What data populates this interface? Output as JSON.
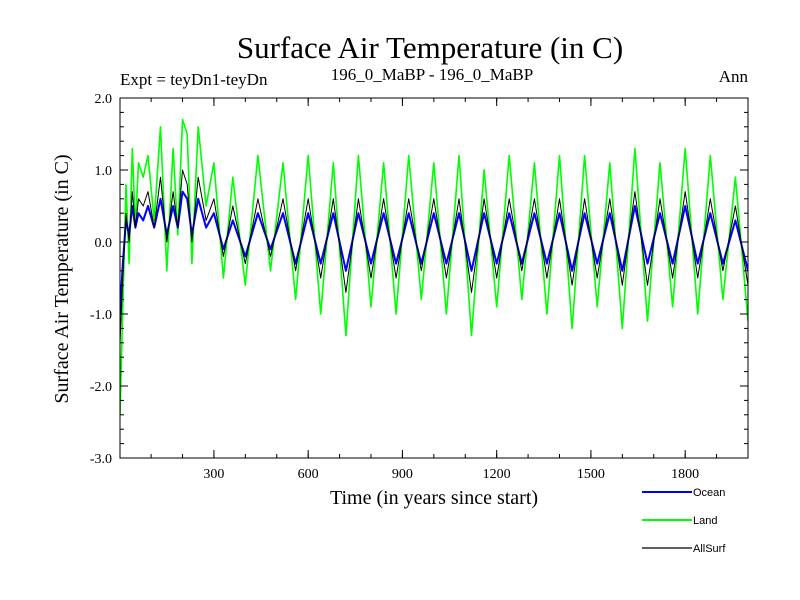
{
  "header": {
    "title": "Surface Air Temperature (in C)",
    "expt": "Expt = teyDn1-teyDn",
    "subtitle": "196_0_MaBP - 196_0_MaBP",
    "season": "Ann"
  },
  "chart_data": {
    "type": "line",
    "title": "Surface Air Temperature (in C)",
    "xlabel": "Time (in years since start)",
    "ylabel": "Surface Air Temperature (in C)",
    "xlim": [
      1,
      2000
    ],
    "ylim": [
      -3.0,
      2.0
    ],
    "xticks": [
      300,
      600,
      900,
      1200,
      1500,
      1800
    ],
    "xtick_labels": [
      "300",
      "600",
      "900",
      "1200",
      "1500",
      "1800"
    ],
    "yticks": [
      2.0,
      1.0,
      0.0,
      -1.0,
      -2.0,
      -3.0
    ],
    "ytick_labels": [
      "2.0",
      "1.0",
      "0.0",
      "-1.0",
      "-2.0",
      "-3.0"
    ],
    "legend_position": "bottom-right, outside plot",
    "series": [
      {
        "name": "Land",
        "color": "#00ff00",
        "x": [
          1,
          10,
          20,
          30,
          40,
          50,
          60,
          75,
          90,
          110,
          130,
          150,
          170,
          185,
          200,
          215,
          230,
          250,
          275,
          300,
          330,
          360,
          400,
          440,
          480,
          520,
          560,
          600,
          640,
          680,
          720,
          760,
          800,
          840,
          880,
          920,
          960,
          1000,
          1040,
          1080,
          1120,
          1160,
          1200,
          1240,
          1280,
          1320,
          1360,
          1400,
          1440,
          1480,
          1520,
          1560,
          1600,
          1640,
          1680,
          1720,
          1760,
          1800,
          1840,
          1880,
          1920,
          1960,
          2000
        ],
        "values": [
          -2.4,
          -0.9,
          0.8,
          -0.3,
          1.3,
          0.2,
          1.1,
          0.9,
          1.2,
          0.3,
          1.6,
          -0.4,
          1.3,
          0.1,
          1.7,
          1.5,
          -0.3,
          1.6,
          0.5,
          1.1,
          -0.5,
          0.9,
          -0.6,
          1.2,
          -0.4,
          1.1,
          -0.8,
          1.2,
          -1.0,
          1.1,
          -1.3,
          1.2,
          -0.9,
          1.1,
          -1.0,
          1.2,
          -0.8,
          1.1,
          -1.0,
          1.2,
          -1.3,
          1.0,
          -0.9,
          1.2,
          -0.8,
          1.1,
          -1.0,
          1.2,
          -1.2,
          1.2,
          -0.9,
          1.1,
          -1.2,
          1.3,
          -1.1,
          1.1,
          -0.9,
          1.3,
          -1.0,
          1.2,
          -0.8,
          0.9,
          -1.1
        ]
      },
      {
        "name": "Ocean",
        "color": "#0000ff",
        "x": [
          1,
          10,
          20,
          30,
          40,
          50,
          60,
          75,
          90,
          110,
          130,
          150,
          170,
          185,
          200,
          215,
          230,
          250,
          275,
          300,
          330,
          360,
          400,
          440,
          480,
          520,
          560,
          600,
          640,
          680,
          720,
          760,
          800,
          840,
          880,
          920,
          960,
          1000,
          1040,
          1080,
          1120,
          1160,
          1200,
          1240,
          1280,
          1320,
          1360,
          1400,
          1440,
          1480,
          1520,
          1560,
          1600,
          1640,
          1680,
          1720,
          1760,
          1800,
          1840,
          1880,
          1920,
          1960,
          2000
        ],
        "values": [
          -1.0,
          -0.3,
          0.3,
          0.1,
          0.5,
          0.2,
          0.4,
          0.3,
          0.5,
          0.2,
          0.6,
          0.1,
          0.5,
          0.2,
          0.7,
          0.6,
          0.1,
          0.6,
          0.2,
          0.4,
          -0.1,
          0.3,
          -0.2,
          0.4,
          -0.1,
          0.4,
          -0.3,
          0.4,
          -0.3,
          0.4,
          -0.4,
          0.4,
          -0.3,
          0.4,
          -0.3,
          0.4,
          -0.3,
          0.4,
          -0.3,
          0.4,
          -0.4,
          0.4,
          -0.3,
          0.4,
          -0.3,
          0.4,
          -0.3,
          0.4,
          -0.4,
          0.4,
          -0.3,
          0.4,
          -0.4,
          0.5,
          -0.3,
          0.4,
          -0.3,
          0.5,
          -0.3,
          0.4,
          -0.3,
          0.3,
          -0.4
        ]
      },
      {
        "name": "AllSurf",
        "color": "#000000",
        "x": [
          1,
          10,
          20,
          30,
          40,
          50,
          60,
          75,
          90,
          110,
          130,
          150,
          170,
          185,
          200,
          215,
          230,
          250,
          275,
          300,
          330,
          360,
          400,
          440,
          480,
          520,
          560,
          600,
          640,
          680,
          720,
          760,
          800,
          840,
          880,
          920,
          960,
          1000,
          1040,
          1080,
          1120,
          1160,
          1200,
          1240,
          1280,
          1320,
          1360,
          1400,
          1440,
          1480,
          1520,
          1560,
          1600,
          1640,
          1680,
          1720,
          1760,
          1800,
          1840,
          1880,
          1920,
          1960,
          2000
        ],
        "values": [
          -1.4,
          -0.5,
          0.4,
          0.0,
          0.7,
          0.2,
          0.6,
          0.5,
          0.7,
          0.2,
          0.9,
          0.0,
          0.7,
          0.2,
          1.0,
          0.8,
          0.0,
          0.9,
          0.3,
          0.6,
          -0.2,
          0.5,
          -0.3,
          0.6,
          -0.2,
          0.6,
          -0.4,
          0.6,
          -0.5,
          0.6,
          -0.7,
          0.6,
          -0.5,
          0.6,
          -0.5,
          0.6,
          -0.4,
          0.6,
          -0.5,
          0.6,
          -0.7,
          0.6,
          -0.5,
          0.6,
          -0.4,
          0.6,
          -0.5,
          0.6,
          -0.6,
          0.6,
          -0.5,
          0.6,
          -0.6,
          0.7,
          -0.6,
          0.6,
          -0.5,
          0.7,
          -0.5,
          0.6,
          -0.4,
          0.5,
          -0.6
        ]
      }
    ]
  }
}
